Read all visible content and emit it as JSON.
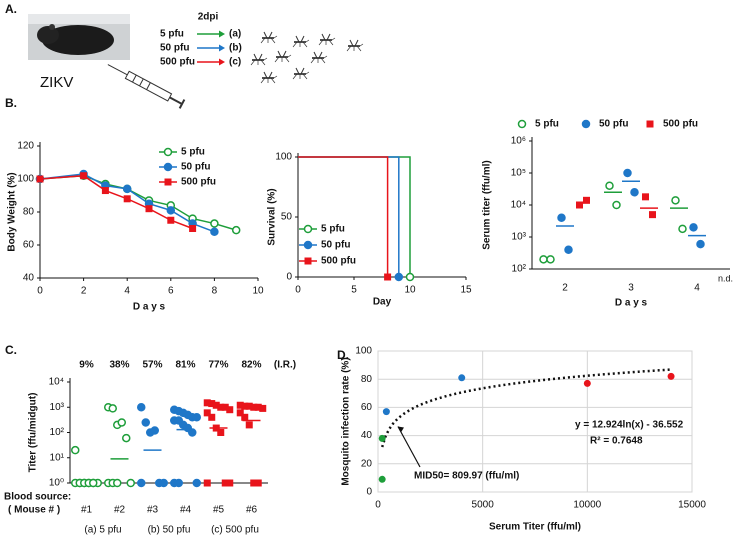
{
  "panel_labels": [
    "A.",
    "B.",
    "C.",
    "D."
  ],
  "diagram": {
    "time": "2dpi",
    "virus": "ZIKV",
    "doses": [
      {
        "dose": "5 pfu",
        "group": "(a)",
        "color": "#1e9e3a"
      },
      {
        "dose": "50 pfu",
        "group": "(b)",
        "color": "#1f77c8"
      },
      {
        "dose": "500 pfu",
        "group": "(c)",
        "color": "#e8141b"
      }
    ]
  },
  "chart_data": [
    {
      "type": "line",
      "ylabel": "Body Weight (%)",
      "xlabel": "D a y s",
      "x": [
        0,
        2,
        3,
        4,
        5,
        6,
        7,
        8,
        9
      ],
      "xlim": [
        0,
        10
      ],
      "xticks": [
        0,
        2,
        4,
        6,
        8,
        10
      ],
      "ylim": [
        40,
        120
      ],
      "yticks": [
        40,
        60,
        80,
        100,
        120
      ],
      "legend": "upper right",
      "series": [
        {
          "name": "5 pfu",
          "color": "#1e9e3a",
          "marker": "open-circle",
          "values": [
            100,
            102,
            97,
            94,
            87,
            84,
            76,
            73,
            69
          ]
        },
        {
          "name": "50 pfu",
          "color": "#1f77c8",
          "marker": "circle",
          "values": [
            100,
            103,
            96,
            94,
            85,
            81,
            73,
            68,
            null
          ]
        },
        {
          "name": "500 pfu",
          "color": "#e8141b",
          "marker": "square",
          "values": [
            100,
            102,
            93,
            88,
            82,
            75,
            70,
            null,
            null
          ]
        }
      ]
    },
    {
      "type": "step",
      "ylabel": "Survival (%)",
      "xlabel": "Day",
      "xlim": [
        0,
        15
      ],
      "xticks": [
        0,
        5,
        10,
        15
      ],
      "ylim": [
        0,
        100
      ],
      "yticks": [
        0,
        50,
        100
      ],
      "legend": "lower left",
      "series": [
        {
          "name": "5 pfu",
          "color": "#1e9e3a",
          "marker": "open-circle",
          "x": [
            0,
            10
          ],
          "values": [
            100,
            0
          ]
        },
        {
          "name": "50 pfu",
          "color": "#1f77c8",
          "marker": "circle",
          "x": [
            0,
            9
          ],
          "values": [
            100,
            0
          ]
        },
        {
          "name": "500 pfu",
          "color": "#e8141b",
          "marker": "square",
          "x": [
            0,
            8
          ],
          "values": [
            100,
            0
          ]
        }
      ]
    },
    {
      "type": "dot",
      "log": true,
      "ylabel": "Serum titer (ffu/ml)",
      "xlabel": "D a y s",
      "categories": [
        "2",
        "3",
        "4"
      ],
      "ylim": [
        100,
        1000000
      ],
      "yticks": [
        {
          "value": 100,
          "label": "10²"
        },
        {
          "value": 1000,
          "label": "10³"
        },
        {
          "value": 10000,
          "label": "10⁴"
        },
        {
          "value": 100000,
          "label": "10⁵"
        },
        {
          "value": 1000000,
          "label": "10⁶"
        }
      ],
      "legend": "top",
      "annotation": "n.d.",
      "series": [
        {
          "name": "5 pfu",
          "color": "#1e9e3a",
          "marker": "open-circle",
          "values": [
            [
              200,
              200
            ],
            [
              40000,
              10000
            ],
            [
              14000,
              1800
            ]
          ],
          "means": [
            null,
            25000,
            8000
          ]
        },
        {
          "name": "50 pfu",
          "color": "#1f77c8",
          "marker": "circle",
          "values": [
            [
              4000,
              400
            ],
            [
              100000,
              25000
            ],
            [
              2000,
              600
            ]
          ],
          "means": [
            2200,
            55000,
            1100
          ]
        },
        {
          "name": "500 pfu",
          "color": "#e8141b",
          "marker": "square",
          "values": [
            [
              10000,
              14000
            ],
            [
              18000,
              5000
            ],
            null
          ],
          "means": [
            null,
            8000,
            null
          ]
        }
      ]
    },
    {
      "type": "dot",
      "log": true,
      "ylabel": "Titer (ffu/midgut)",
      "ylim": [
        1,
        10000
      ],
      "yticks": [
        {
          "value": 1,
          "label": "10⁰"
        },
        {
          "value": 10,
          "label": "10¹"
        },
        {
          "value": 100,
          "label": "10²"
        },
        {
          "value": 1000,
          "label": "10³"
        },
        {
          "value": 10000,
          "label": "10⁴"
        }
      ],
      "rates": [
        9,
        38,
        57,
        81,
        77,
        82
      ],
      "rate_labels": [
        "9%",
        "38%",
        "57%",
        "81%",
        "77%",
        "82%"
      ],
      "rate_note": "(I.R.)",
      "row_title": "Blood source:",
      "row_subtitle": "( Mouse # )",
      "groups": [
        {
          "label": "(a) 5 pfu",
          "color": "#1e9e3a",
          "marker": "open-circle",
          "categories": [
            "#1",
            "#2"
          ],
          "values": [
            [
              20,
              1,
              1,
              1,
              1,
              1,
              1,
              1,
              1,
              1,
              1
            ],
            [
              1000,
              900,
              200,
              250,
              60,
              1,
              1,
              1,
              1
            ]
          ],
          "means": [
            null,
            9
          ]
        },
        {
          "label": "(b) 50 pfu",
          "color": "#1f77c8",
          "marker": "circle",
          "categories": [
            "#3",
            "#4"
          ],
          "values": [
            [
              1000,
              250,
              100,
              120,
              1,
              1,
              1
            ],
            [
              800,
              700,
              600,
              500,
              400,
              400,
              300,
              300,
              200,
              150,
              100,
              1,
              1,
              1
            ]
          ],
          "means": [
            20,
            130
          ]
        },
        {
          "label": "(c) 500 pfu",
          "color": "#e8141b",
          "marker": "square",
          "categories": [
            "#5",
            "#6"
          ],
          "values": [
            [
              1500,
              1400,
              1200,
              1000,
              1000,
              800,
              600,
              400,
              150,
              100,
              1,
              1,
              1
            ],
            [
              1200,
              1100,
              1100,
              1000,
              1000,
              900,
              600,
              400,
              200,
              1,
              1
            ]
          ],
          "means": [
            150,
            300
          ]
        }
      ]
    },
    {
      "type": "scatter",
      "xlabel": "Serum Titer (ffu/ml)",
      "ylabel": "Mosquito infection rate (%)",
      "xlim": [
        0,
        15000
      ],
      "xticks": [
        0,
        5000,
        10000,
        15000
      ],
      "ylim": [
        0,
        100
      ],
      "yticks": [
        0,
        20,
        40,
        60,
        80,
        100
      ],
      "grid": true,
      "x": [
        200,
        200,
        400,
        4000,
        10000,
        14000
      ],
      "values": [
        9,
        38,
        57,
        81,
        77,
        82
      ],
      "colors": [
        "#1e9e3a",
        "#1e9e3a",
        "#1f77c8",
        "#1f77c8",
        "#e8141b",
        "#e8141b"
      ],
      "fit": {
        "a": 12.924,
        "b": -36.552,
        "equation": "y = 12.924ln(x) - 36.552",
        "r2_label": "R² = 0.7648"
      },
      "mid50": 809.97,
      "annotation": "MID50= 809.97 (ffu/ml)"
    }
  ]
}
